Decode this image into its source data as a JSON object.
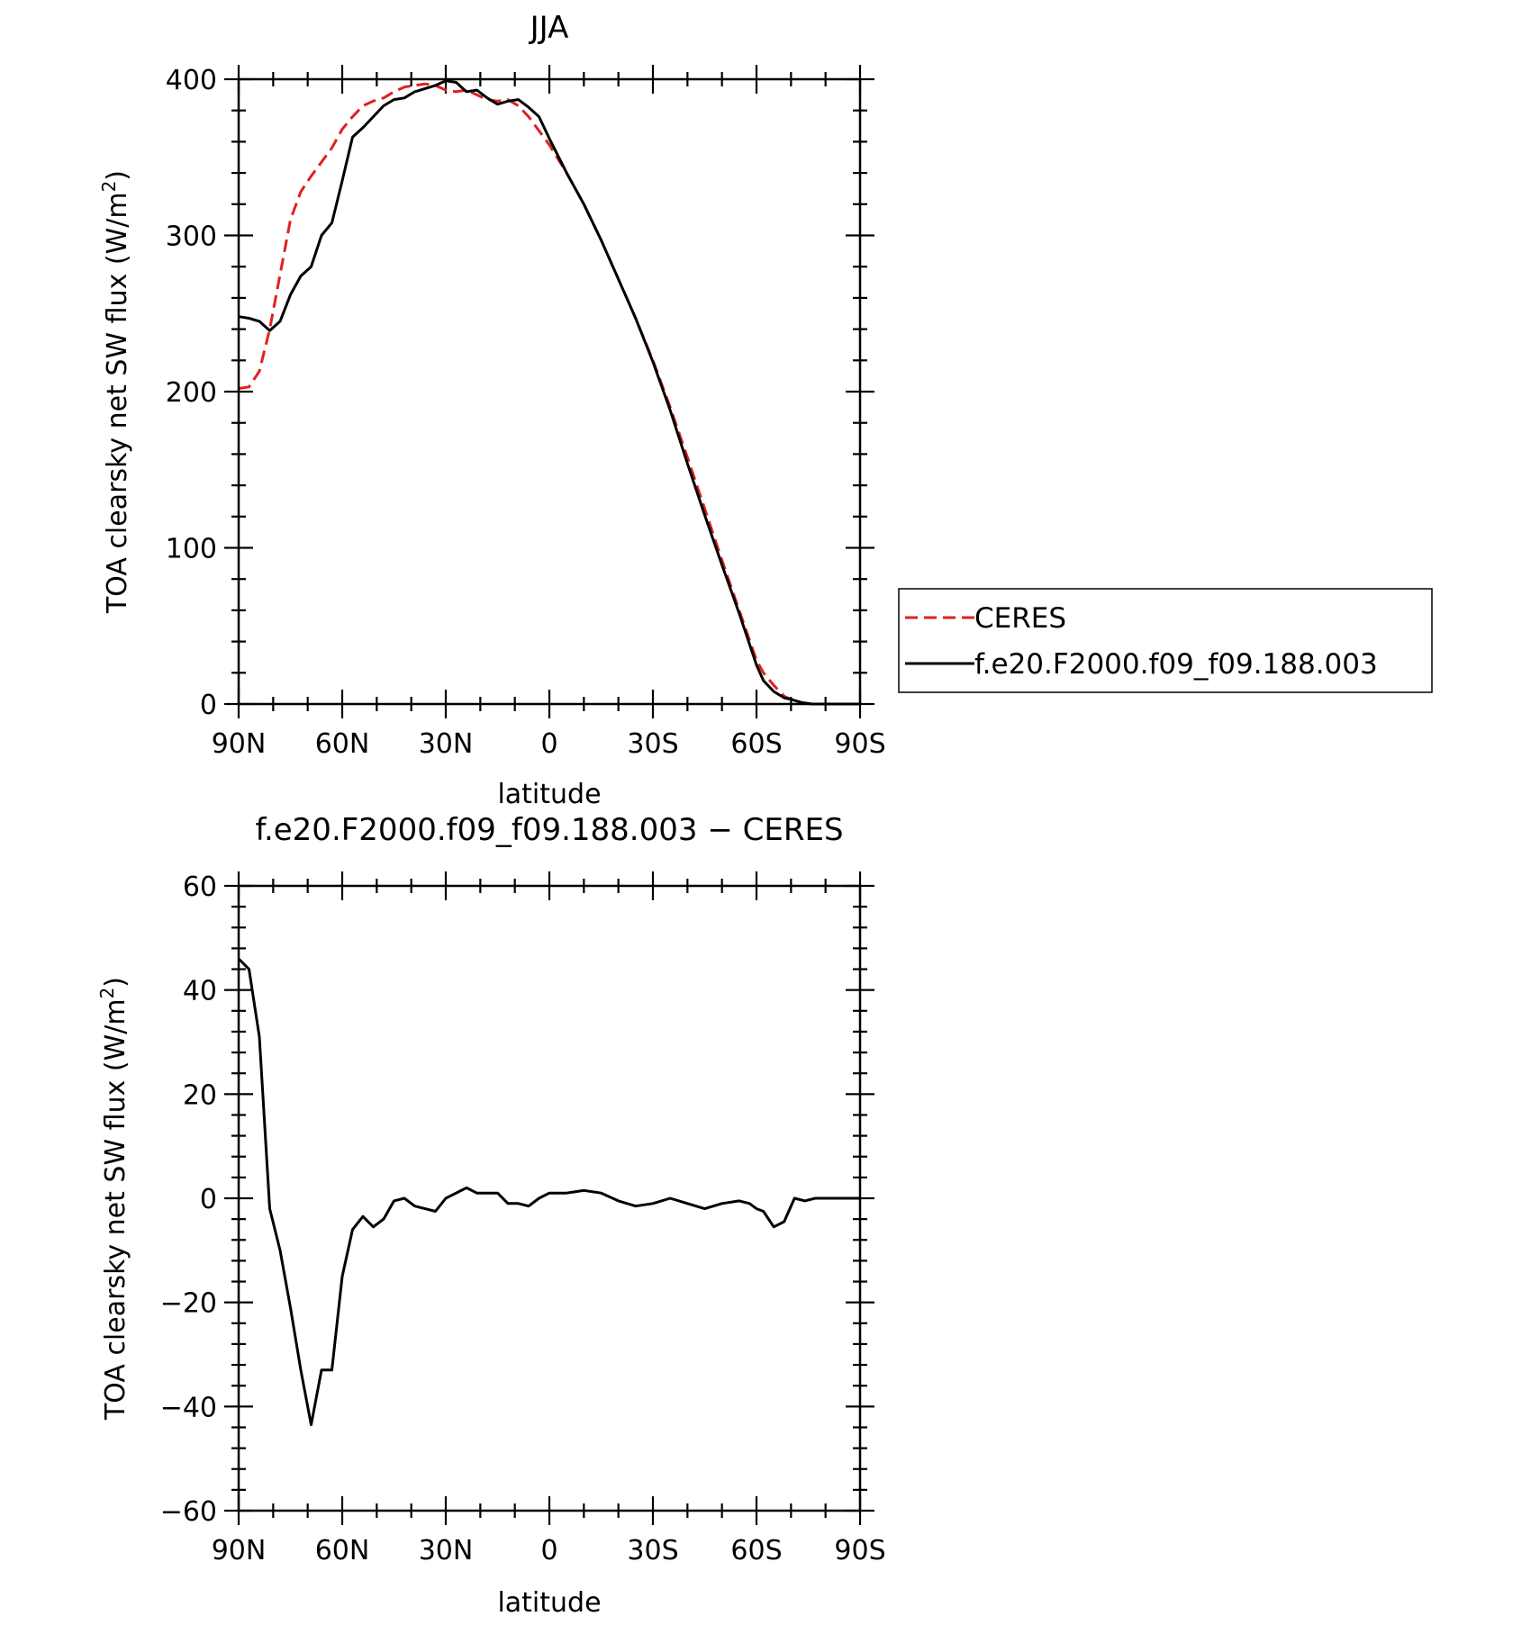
{
  "colors": {
    "ceres": "#e02020",
    "model": "#000000"
  },
  "legend": {
    "items": [
      {
        "label": "CERES",
        "color": "#e02020",
        "style": "dashed"
      },
      {
        "label": "f.e20.F2000.f09_f09.188.003",
        "color": "#000000",
        "style": "solid"
      }
    ]
  },
  "chart_data": [
    {
      "type": "line",
      "title": "JJA",
      "xlabel": "latitude",
      "ylabel": "TOA clearsky net SW flux (W/m²)",
      "ylabel_parts": {
        "main": "TOA clearsky net SW flux (W/m",
        "sup": "2",
        "close": ")"
      },
      "xlim": [
        90,
        -90
      ],
      "ylim": [
        0,
        400
      ],
      "xticks": [
        90,
        60,
        30,
        0,
        -30,
        -60,
        -90
      ],
      "xticklabels": [
        "90N",
        "60N",
        "30N",
        "0",
        "30S",
        "60S",
        "90S"
      ],
      "yticks": [
        0,
        100,
        200,
        300,
        400
      ],
      "yticklabels": [
        "0",
        "100",
        "200",
        "300",
        "400"
      ],
      "series": [
        {
          "name": "CERES",
          "color": "#e02020",
          "style": "dashed",
          "x": [
            90,
            87,
            84,
            81,
            78,
            75,
            72,
            69,
            66,
            63,
            60,
            57,
            54,
            51,
            48,
            45,
            42,
            39,
            36,
            33,
            30,
            27,
            24,
            21,
            18,
            15,
            12,
            9,
            6,
            3,
            0,
            -5,
            -10,
            -15,
            -20,
            -25,
            -30,
            -35,
            -40,
            -45,
            -50,
            -55,
            -60,
            -62,
            -65,
            -68,
            -70,
            -73,
            -76,
            -80,
            -85,
            -90
          ],
          "y": [
            202,
            203,
            213,
            240,
            275,
            310,
            328,
            338,
            347,
            356,
            368,
            376,
            383,
            386,
            388,
            392,
            395,
            396,
            397,
            396,
            393,
            392,
            393,
            390,
            387,
            386,
            387,
            383,
            376,
            367,
            358,
            340,
            320,
            297,
            272,
            247,
            220,
            190,
            158,
            125,
            92,
            60,
            28,
            20,
            12,
            5,
            3,
            1,
            0,
            0,
            0,
            0
          ]
        },
        {
          "name": "f.e20.F2000.f09_f09.188.003",
          "color": "#000000",
          "style": "solid",
          "x": [
            90,
            87,
            84,
            81,
            78,
            75,
            72,
            69,
            66,
            63,
            60,
            57,
            54,
            51,
            48,
            45,
            42,
            39,
            36,
            33,
            30,
            27,
            24,
            21,
            18,
            15,
            12,
            9,
            6,
            3,
            0,
            -5,
            -10,
            -15,
            -20,
            -25,
            -30,
            -35,
            -40,
            -45,
            -50,
            -55,
            -60,
            -62,
            -65,
            -68,
            -70,
            -73,
            -76,
            -80,
            -85,
            -90
          ],
          "y": [
            248,
            247,
            245,
            239,
            245,
            262,
            274,
            280,
            300,
            308,
            335,
            363,
            369,
            376,
            383,
            387,
            388,
            392,
            394,
            396,
            399,
            398,
            392,
            393,
            388,
            384,
            386,
            387,
            382,
            376,
            362,
            340,
            320,
            297,
            272,
            247,
            219,
            188,
            154,
            121,
            89,
            58,
            25,
            15,
            8,
            4,
            3,
            1,
            0,
            0,
            0,
            0
          ]
        }
      ]
    },
    {
      "type": "line",
      "title": "f.e20.F2000.f09_f09.188.003 − CERES",
      "xlabel": "latitude",
      "ylabel": "TOA clearsky net SW flux (W/m²)",
      "ylabel_parts": {
        "main": "TOA clearsky net SW flux (W/m",
        "sup": "2",
        "close": ")"
      },
      "xlim": [
        90,
        -90
      ],
      "ylim": [
        -60,
        60
      ],
      "xticks": [
        90,
        60,
        30,
        0,
        -30,
        -60,
        -90
      ],
      "xticklabels": [
        "90N",
        "60N",
        "30N",
        "0",
        "30S",
        "60S",
        "90S"
      ],
      "yticks": [
        -60,
        -40,
        -20,
        0,
        20,
        40,
        60
      ],
      "yticklabels": [
        "−60",
        "−40",
        "−20",
        "0",
        "20",
        "40",
        "60"
      ],
      "series": [
        {
          "color": "#000000",
          "style": "solid",
          "x": [
            90,
            87,
            84,
            81,
            78,
            75,
            72,
            69,
            66,
            63,
            60,
            57,
            54,
            51,
            48,
            45,
            42,
            39,
            36,
            33,
            30,
            27,
            24,
            21,
            18,
            15,
            12,
            9,
            6,
            3,
            0,
            -5,
            -10,
            -15,
            -20,
            -25,
            -30,
            -35,
            -40,
            -45,
            -50,
            -55,
            -58,
            -60,
            -62,
            -65,
            -68,
            -71,
            -74,
            -77,
            -80,
            -85,
            -90
          ],
          "y": [
            46,
            44,
            31,
            -2,
            -10,
            -21,
            -33,
            -43.5,
            -33,
            -33,
            -15,
            -6,
            -3.5,
            -5.5,
            -4,
            -0.5,
            0,
            -1.5,
            -2,
            -2.5,
            0,
            1,
            2,
            1,
            1,
            1,
            -1,
            -1,
            -1.5,
            0,
            1,
            1,
            1.5,
            1,
            -0.5,
            -1.5,
            -1,
            0,
            -1,
            -2,
            -1,
            -0.5,
            -1,
            -2,
            -2.5,
            -5.5,
            -4.5,
            0,
            -0.5,
            0,
            0,
            0,
            0
          ]
        }
      ]
    }
  ]
}
